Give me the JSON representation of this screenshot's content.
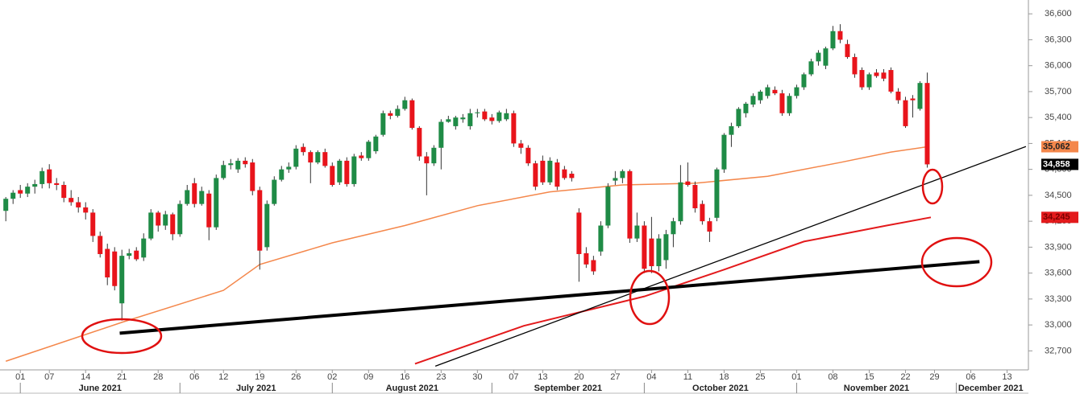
{
  "chart_data": {
    "type": "candlestick",
    "up_color": "#1f8b46",
    "down_color": "#e8141b",
    "ylim": [
      32480,
      36760
    ],
    "yticks": [
      {
        "value": 32700,
        "label": "32,700"
      },
      {
        "value": 33000,
        "label": "33,000"
      },
      {
        "value": 33300,
        "label": "33,300"
      },
      {
        "value": 33600,
        "label": "33,600"
      },
      {
        "value": 33900,
        "label": "33,900"
      },
      {
        "value": 34200,
        "label": "34,200"
      },
      {
        "value": 34500,
        "label": "34,500"
      },
      {
        "value": 34800,
        "label": "34,800"
      },
      {
        "value": 35100,
        "label": "35,100"
      },
      {
        "value": 35400,
        "label": "35,400"
      },
      {
        "value": 35700,
        "label": "35,700"
      },
      {
        "value": 36000,
        "label": "36,000"
      },
      {
        "value": 36300,
        "label": "36,300"
      },
      {
        "value": 36600,
        "label": "36,600"
      }
    ],
    "xlim": [
      -0.8,
      140.5
    ],
    "xticks": [
      {
        "value": 2,
        "label": "01"
      },
      {
        "value": 6,
        "label": "07"
      },
      {
        "value": 11,
        "label": "14"
      },
      {
        "value": 16,
        "label": "21"
      },
      {
        "value": 21,
        "label": "28"
      },
      {
        "value": 26,
        "label": "06"
      },
      {
        "value": 30,
        "label": "12"
      },
      {
        "value": 35,
        "label": "19"
      },
      {
        "value": 40,
        "label": "26"
      },
      {
        "value": 45,
        "label": "02"
      },
      {
        "value": 50,
        "label": "09"
      },
      {
        "value": 55,
        "label": "16"
      },
      {
        "value": 60,
        "label": "23"
      },
      {
        "value": 65,
        "label": "30"
      },
      {
        "value": 70,
        "label": "07"
      },
      {
        "value": 74,
        "label": "13"
      },
      {
        "value": 79,
        "label": "20"
      },
      {
        "value": 84,
        "label": "27"
      },
      {
        "value": 89,
        "label": "04"
      },
      {
        "value": 94,
        "label": "11"
      },
      {
        "value": 99,
        "label": "18"
      },
      {
        "value": 104,
        "label": "25"
      },
      {
        "value": 109,
        "label": "01"
      },
      {
        "value": 114,
        "label": "08"
      },
      {
        "value": 119,
        "label": "15"
      },
      {
        "value": 124,
        "label": "22"
      },
      {
        "value": 128,
        "label": "29"
      },
      {
        "value": 133,
        "label": "06"
      },
      {
        "value": 138,
        "label": "13"
      }
    ],
    "months": [
      {
        "value": 2,
        "label": "June 2021"
      },
      {
        "value": 24,
        "label": "July 2021"
      },
      {
        "value": 45,
        "label": "August 2021"
      },
      {
        "value": 67,
        "label": "September 2021"
      },
      {
        "value": 88,
        "label": "October 2021"
      },
      {
        "value": 109,
        "label": "November 2021"
      },
      {
        "value": 131,
        "label": "December 2021"
      }
    ],
    "ohlc": [
      [
        34320,
        34480,
        34200,
        34460
      ],
      [
        34460,
        34560,
        34400,
        34530
      ],
      [
        34560,
        34620,
        34470,
        34520
      ],
      [
        34520,
        34640,
        34480,
        34600
      ],
      [
        34600,
        34680,
        34520,
        34630
      ],
      [
        34630,
        34820,
        34580,
        34780
      ],
      [
        34800,
        34860,
        34580,
        34640
      ],
      [
        34640,
        34700,
        34560,
        34620
      ],
      [
        34620,
        34660,
        34420,
        34470
      ],
      [
        34470,
        34560,
        34380,
        34420
      ],
      [
        34420,
        34480,
        34300,
        34360
      ],
      [
        34360,
        34420,
        34220,
        34300
      ],
      [
        34300,
        34340,
        33960,
        34030
      ],
      [
        34030,
        34080,
        33780,
        33820
      ],
      [
        33880,
        33940,
        33460,
        33550
      ],
      [
        33850,
        33900,
        33400,
        33450
      ],
      [
        33250,
        33870,
        33050,
        33800
      ],
      [
        33800,
        33880,
        33760,
        33830
      ],
      [
        33860,
        33900,
        33740,
        33760
      ],
      [
        33780,
        34060,
        33740,
        34000
      ],
      [
        34000,
        34340,
        33980,
        34300
      ],
      [
        34300,
        34320,
        34080,
        34150
      ],
      [
        34150,
        34320,
        34100,
        34280
      ],
      [
        34280,
        34300,
        33980,
        34050
      ],
      [
        34050,
        34440,
        34020,
        34400
      ],
      [
        34400,
        34620,
        34380,
        34560
      ],
      [
        34640,
        34700,
        34360,
        34400
      ],
      [
        34400,
        34600,
        34380,
        34550
      ],
      [
        34520,
        34560,
        33980,
        34130
      ],
      [
        34130,
        34740,
        34100,
        34700
      ],
      [
        34700,
        34900,
        34680,
        34850
      ],
      [
        34850,
        34920,
        34800,
        34870
      ],
      [
        34800,
        34930,
        34760,
        34900
      ],
      [
        34900,
        34940,
        34820,
        34860
      ],
      [
        34880,
        34920,
        34500,
        34550
      ],
      [
        34560,
        34600,
        33640,
        33860
      ],
      [
        33900,
        34440,
        33860,
        34400
      ],
      [
        34400,
        34720,
        34380,
        34680
      ],
      [
        34680,
        34840,
        34660,
        34800
      ],
      [
        34800,
        34880,
        34760,
        34830
      ],
      [
        34830,
        35080,
        34800,
        35040
      ],
      [
        35060,
        35100,
        34960,
        35000
      ],
      [
        35000,
        35020,
        34640,
        34880
      ],
      [
        34880,
        35020,
        34860,
        35000
      ],
      [
        35000,
        35040,
        34820,
        34840
      ],
      [
        34840,
        34880,
        34600,
        34620
      ],
      [
        34650,
        34920,
        34620,
        34900
      ],
      [
        34900,
        34940,
        34600,
        34630
      ],
      [
        34630,
        34980,
        34600,
        34950
      ],
      [
        34960,
        35000,
        34900,
        34930
      ],
      [
        34930,
        35140,
        34900,
        35120
      ],
      [
        35010,
        35200,
        34980,
        35180
      ],
      [
        35200,
        35480,
        35180,
        35450
      ],
      [
        35450,
        35480,
        35380,
        35420
      ],
      [
        35420,
        35540,
        35400,
        35500
      ],
      [
        35500,
        35640,
        35480,
        35600
      ],
      [
        35600,
        35620,
        35260,
        35280
      ],
      [
        35280,
        35300,
        34900,
        34950
      ],
      [
        34950,
        35000,
        34500,
        34870
      ],
      [
        34870,
        35080,
        34840,
        35050
      ],
      [
        35050,
        35380,
        34800,
        35350
      ],
      [
        35350,
        35420,
        35340,
        35380
      ],
      [
        35300,
        35420,
        35260,
        35400
      ],
      [
        35380,
        35440,
        35340,
        35400
      ],
      [
        35300,
        35500,
        35260,
        35450
      ],
      [
        35450,
        35500,
        35400,
        35460
      ],
      [
        35470,
        35500,
        35360,
        35380
      ],
      [
        35400,
        35440,
        35320,
        35360
      ],
      [
        35360,
        35480,
        35340,
        35460
      ],
      [
        35380,
        35500,
        35360,
        35450
      ],
      [
        35450,
        35480,
        35060,
        35100
      ],
      [
        35100,
        35140,
        34980,
        35050
      ],
      [
        35050,
        35080,
        34840,
        34870
      ],
      [
        34870,
        34900,
        34560,
        34600
      ],
      [
        34900,
        34960,
        34620,
        34650
      ],
      [
        34650,
        34940,
        34620,
        34900
      ],
      [
        34880,
        34920,
        34560,
        34600
      ],
      [
        34800,
        34840,
        34680,
        34700
      ],
      [
        34750,
        34780,
        34660,
        34700
      ],
      [
        34300,
        34350,
        33500,
        33820
      ],
      [
        33830,
        33900,
        33660,
        33700
      ],
      [
        33750,
        33800,
        33580,
        33620
      ],
      [
        33850,
        34200,
        33800,
        34150
      ],
      [
        34150,
        34640,
        34120,
        34600
      ],
      [
        34670,
        34780,
        34620,
        34700
      ],
      [
        34700,
        34800,
        34640,
        34780
      ],
      [
        34780,
        34800,
        33950,
        34000
      ],
      [
        34000,
        34300,
        33960,
        34150
      ],
      [
        34150,
        34200,
        33600,
        33650
      ],
      [
        34000,
        34250,
        33600,
        33680
      ],
      [
        33680,
        34050,
        33620,
        34000
      ],
      [
        33750,
        34100,
        33650,
        34050
      ],
      [
        34050,
        34240,
        33900,
        34200
      ],
      [
        34200,
        34850,
        34160,
        34650
      ],
      [
        34660,
        34880,
        34600,
        34620
      ],
      [
        34620,
        34660,
        34300,
        34350
      ],
      [
        34400,
        34440,
        34160,
        34200
      ],
      [
        34200,
        34240,
        33960,
        34080
      ],
      [
        34240,
        34820,
        34200,
        34800
      ],
      [
        34800,
        35220,
        34760,
        35200
      ],
      [
        35200,
        35340,
        35060,
        35300
      ],
      [
        35300,
        35520,
        35280,
        35500
      ],
      [
        35450,
        35580,
        35400,
        35560
      ],
      [
        35550,
        35680,
        35520,
        35650
      ],
      [
        35600,
        35720,
        35560,
        35700
      ],
      [
        35650,
        35780,
        35620,
        35750
      ],
      [
        35720,
        35760,
        35660,
        35680
      ],
      [
        35680,
        35720,
        35420,
        35450
      ],
      [
        35450,
        35680,
        35420,
        35650
      ],
      [
        35650,
        35780,
        35620,
        35750
      ],
      [
        35750,
        35920,
        35720,
        35900
      ],
      [
        35900,
        36080,
        35880,
        36050
      ],
      [
        36050,
        36180,
        36000,
        36150
      ],
      [
        36000,
        36220,
        35960,
        36200
      ],
      [
        36200,
        36460,
        36180,
        36400
      ],
      [
        36400,
        36480,
        36260,
        36300
      ],
      [
        36250,
        36300,
        36080,
        36100
      ],
      [
        36100,
        36140,
        35860,
        35900
      ],
      [
        35950,
        35980,
        35720,
        35750
      ],
      [
        35750,
        35920,
        35720,
        35900
      ],
      [
        35920,
        35960,
        35860,
        35880
      ],
      [
        35920,
        35960,
        35820,
        35850
      ],
      [
        35950,
        35980,
        35680,
        35700
      ],
      [
        35700,
        35740,
        35560,
        35600
      ],
      [
        35600,
        35640,
        35280,
        35300
      ],
      [
        35620,
        35660,
        35400,
        35600
      ],
      [
        35500,
        35820,
        35480,
        35800
      ],
      [
        35800,
        35920,
        34820,
        34858
      ]
    ],
    "lines": [
      {
        "color": "#f4874b",
        "width": 1.5,
        "x": [
          0,
          16,
          30,
          35,
          45,
          55,
          65,
          75,
          85,
          95,
          105,
          115,
          122,
          127
        ],
        "values": [
          32580,
          33030,
          33400,
          33700,
          33950,
          34150,
          34380,
          34540,
          34620,
          34640,
          34720,
          34880,
          35000,
          35062
        ]
      },
      {
        "color": "#e31a1c",
        "width": 2,
        "x": [
          56.4,
          71.4,
          88,
          99,
          110,
          121.4,
          127.5
        ],
        "values": [
          32550,
          32990,
          33330,
          33640,
          33965,
          34150,
          34245
        ]
      },
      {
        "color": "#000000",
        "width": 1.3,
        "x": [
          59.2,
          140.6
        ],
        "values": [
          32523,
          35064
        ]
      },
      {
        "color": "#000000",
        "width": 4,
        "x": [
          15.7,
          134.2
        ],
        "values": [
          32905,
          33733
        ]
      }
    ],
    "price_tags": [
      {
        "value": 35062,
        "label": "35,062",
        "color": "#f4874b",
        "text_color": "#222222"
      },
      {
        "value": 34858,
        "label": "34,858",
        "color": "#000000",
        "text_color": "#ffffff"
      },
      {
        "value": 34245,
        "label": "34,245",
        "color": "#e31a1c",
        "text_color": "#7a0000"
      }
    ]
  }
}
